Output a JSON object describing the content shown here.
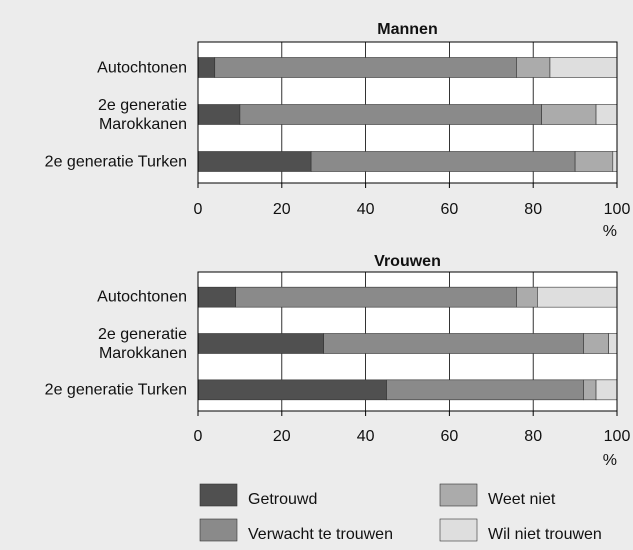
{
  "chart_data": [
    {
      "type": "bar",
      "orientation": "horizontal",
      "title": "Mannen",
      "x_label": "%",
      "categories": [
        "Autochtonen",
        "2e generatie\nMarokkanen",
        "2e generatie Turken"
      ],
      "series": [
        {
          "name": "Getrouwd",
          "color": "#505050",
          "values": [
            4,
            10,
            27
          ]
        },
        {
          "name": "Verwacht te trouwen",
          "color": "#8a8a8a",
          "values": [
            72,
            72,
            63
          ]
        },
        {
          "name": "Weet niet",
          "color": "#ababab",
          "values": [
            8,
            13,
            9
          ]
        },
        {
          "name": "Wil niet trouwen",
          "color": "#dedede",
          "values": [
            16,
            5,
            1
          ]
        }
      ],
      "xlim": [
        0,
        100
      ],
      "xticks": [
        0,
        20,
        40,
        60,
        80,
        100
      ],
      "grid": true
    },
    {
      "type": "bar",
      "orientation": "horizontal",
      "title": "Vrouwen",
      "x_label": "%",
      "categories": [
        "Autochtonen",
        "2e generatie\nMarokkanen",
        "2e generatie Turken"
      ],
      "series": [
        {
          "color": "#505050",
          "values": [
            9,
            30,
            45
          ]
        },
        {
          "color": "#8a8a8a",
          "values": [
            67,
            62,
            47
          ]
        },
        {
          "color": "#ababab",
          "values": [
            5,
            6,
            3
          ]
        },
        {
          "color": "#dedede",
          "values": [
            19,
            2,
            5
          ]
        }
      ],
      "xlim": [
        0,
        100
      ],
      "xticks": [
        0,
        20,
        40,
        60,
        80,
        100
      ],
      "grid": true
    }
  ]
}
